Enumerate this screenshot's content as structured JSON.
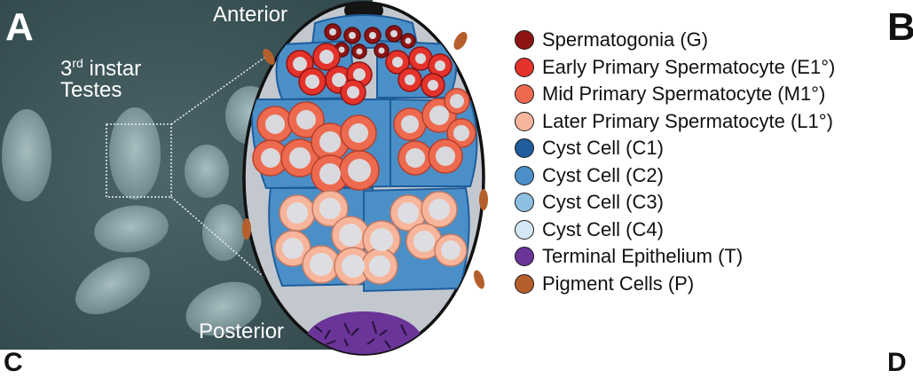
{
  "panels": {
    "a": "A",
    "b": "B",
    "c": "C",
    "d": "D"
  },
  "micrograph": {
    "instar_num": "3",
    "instar_sup": "rd",
    "instar_word": " instar",
    "testes": "Testes"
  },
  "orientation": {
    "anterior": "Anterior",
    "posterior": "Posterior"
  },
  "legend": [
    {
      "label": "Spermatogonia (G)",
      "color": "#8e1414"
    },
    {
      "label": "Early Primary Spermatocyte (E1°)",
      "color": "#e3332b"
    },
    {
      "label": "Mid Primary Spermatocyte (M1°)",
      "color": "#ee6a4f"
    },
    {
      "label": "Later Primary Spermatocyte (L1°)",
      "color": "#f7b59b"
    },
    {
      "label": "Cyst Cell (C1)",
      "color": "#1f5d9c"
    },
    {
      "label": "Cyst Cell (C2)",
      "color": "#4a8fc8"
    },
    {
      "label": "Cyst Cell (C3)",
      "color": "#8dbfe0"
    },
    {
      "label": "Cyst Cell (C4)",
      "color": "#d4e7f5"
    },
    {
      "label": "Terminal Epithelium (T)",
      "color": "#6a3498"
    },
    {
      "label": "Pigment Cells (P)",
      "color": "#b5602c"
    }
  ]
}
